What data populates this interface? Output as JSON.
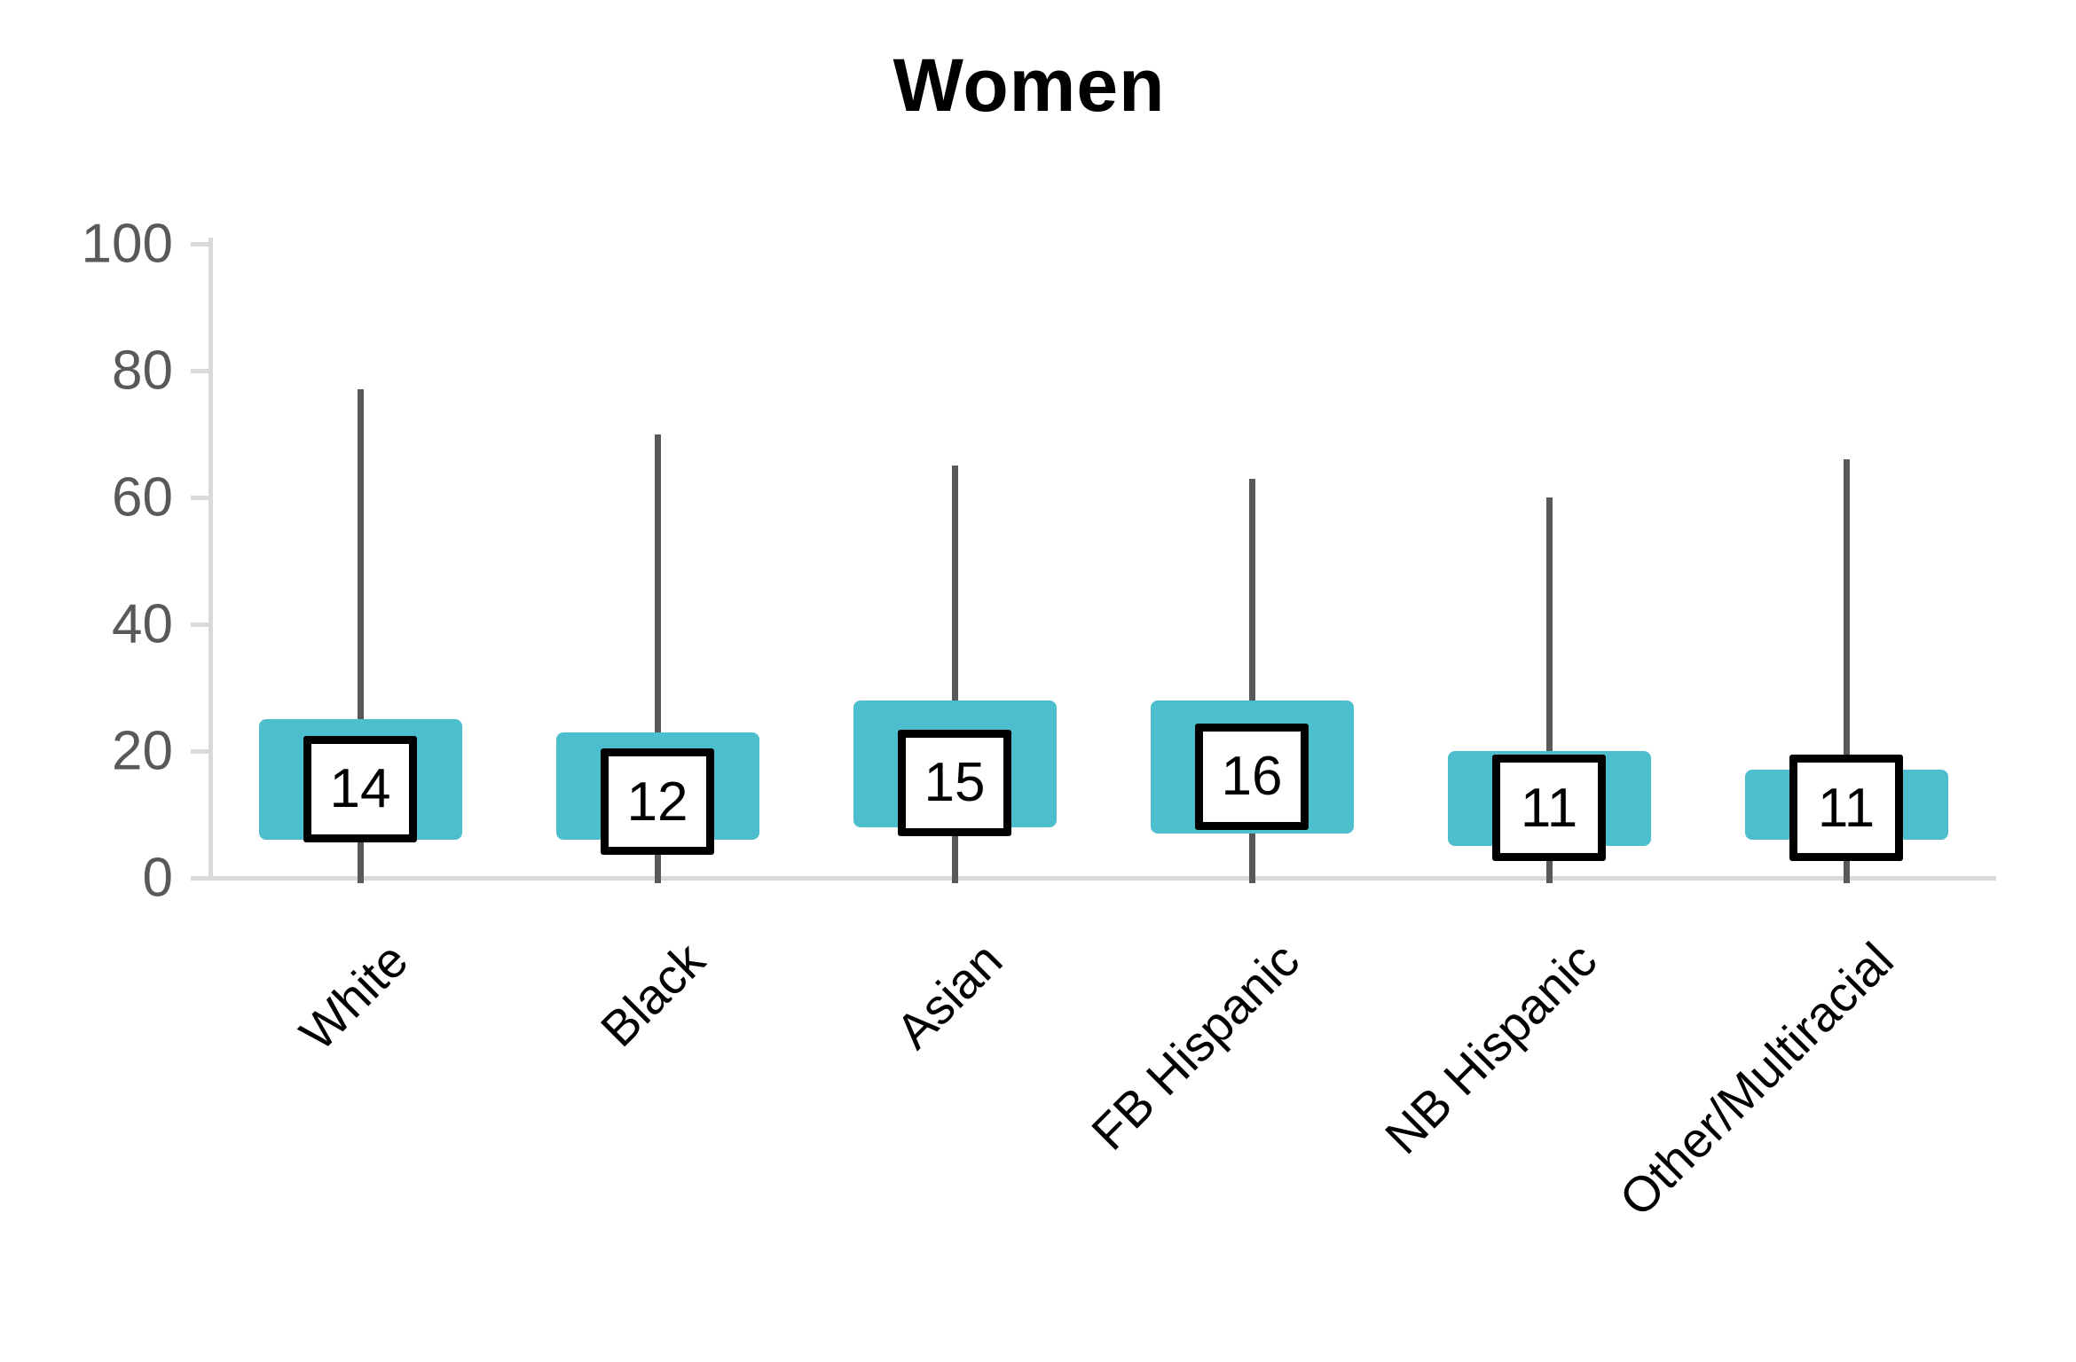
{
  "title": "Women",
  "colors": {
    "box_fill": "#4DBECD",
    "whisker": "#595959",
    "axis_line": "#D9D9D9",
    "y_tick_label": "#595959",
    "x_label": "#000000",
    "median_box_border": "#000000",
    "median_box_fill": "#FFFFFF",
    "title_color": "#000000"
  },
  "y_axis": {
    "min": 0,
    "max": 100,
    "tick_interval": 20,
    "tick_labels": [
      "0",
      "20",
      "40",
      "60",
      "80",
      "100"
    ]
  },
  "chart_data": {
    "type": "box",
    "title": "Women",
    "categories": [
      "White",
      "Black",
      "Asian",
      "FB Hispanic",
      "NB Hispanic",
      "Other/Multiracial"
    ],
    "series": [
      {
        "category": "White",
        "whisker_low": 0,
        "q1": 6,
        "median": 14,
        "q3": 25,
        "whisker_high": 77
      },
      {
        "category": "Black",
        "whisker_low": 0,
        "q1": 6,
        "median": 12,
        "q3": 23,
        "whisker_high": 70
      },
      {
        "category": "Asian",
        "whisker_low": 0,
        "q1": 8,
        "median": 15,
        "q3": 28,
        "whisker_high": 65
      },
      {
        "category": "FB Hispanic",
        "whisker_low": 0,
        "q1": 7,
        "median": 16,
        "q3": 28,
        "whisker_high": 63
      },
      {
        "category": "NB Hispanic",
        "whisker_low": 0,
        "q1": 5,
        "median": 11,
        "q3": 20,
        "whisker_high": 60
      },
      {
        "category": "Other/Multiracial",
        "whisker_low": 0,
        "q1": 6,
        "median": 11,
        "q3": 17,
        "whisker_high": 66
      }
    ],
    "median_labels": [
      "14",
      "12",
      "15",
      "16",
      "11",
      "11"
    ],
    "ylim": [
      0,
      100
    ],
    "grid": false,
    "legend": false,
    "legend_position": "none"
  }
}
